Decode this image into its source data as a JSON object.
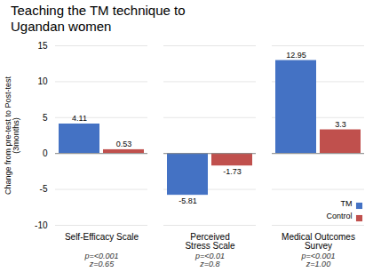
{
  "chart_data": {
    "type": "bar",
    "title": "Teaching the TM technique to\nUgandan women",
    "ylabel": "Change from pre-test to Post-test\n(3months)",
    "categories": [
      "Self-Efficacy Scale",
      "Perceived\nStress Scale",
      "Medical Outcomes\nSurvey"
    ],
    "series": [
      {
        "name": "TM",
        "color": "#4472C4",
        "values": [
          4.11,
          -5.81,
          12.95
        ]
      },
      {
        "name": "Control",
        "color": "#C0504D",
        "values": [
          0.53,
          -1.73,
          3.3
        ]
      }
    ],
    "annotations": [
      "p=<0.001\nz=0.65",
      "p=<0.01\nz=0.8",
      "p=<0.001\nz=1.00"
    ],
    "ylim": [
      -10,
      15
    ],
    "yticks": [
      -10,
      -5,
      0,
      5,
      10,
      15
    ],
    "grid": true,
    "data_labels": true,
    "legend": "lower right"
  }
}
